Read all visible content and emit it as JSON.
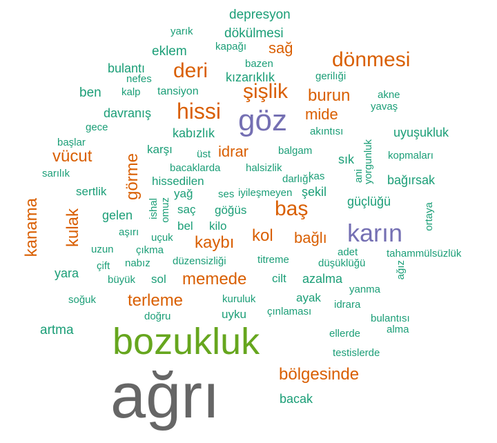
{
  "colors": {
    "teal": "#1b9e77",
    "orange": "#d95f02",
    "purple": "#7570b3",
    "green": "#66a61e",
    "gray": "#666666"
  },
  "words": [
    {
      "text": "ağrı",
      "color": "gray",
      "rank": 1
    },
    {
      "text": "bozukluk",
      "color": "green",
      "rank": 2
    },
    {
      "text": "göz",
      "color": "purple",
      "rank": 3
    },
    {
      "text": "karın",
      "color": "purple",
      "rank": 3
    },
    {
      "text": "hissi",
      "color": "orange",
      "rank": 4
    },
    {
      "text": "deri",
      "color": "orange",
      "rank": 4
    },
    {
      "text": "dönmesi",
      "color": "orange",
      "rank": 4
    },
    {
      "text": "şişlik",
      "color": "orange",
      "rank": 4
    },
    {
      "text": "baş",
      "color": "orange",
      "rank": 4
    },
    {
      "text": "memede",
      "color": "orange",
      "rank": 5
    },
    {
      "text": "terleme",
      "color": "orange",
      "rank": 5
    },
    {
      "text": "bölgesinde",
      "color": "orange",
      "rank": 5
    },
    {
      "text": "burun",
      "color": "orange",
      "rank": 5
    },
    {
      "text": "kol",
      "color": "orange",
      "rank": 5
    },
    {
      "text": "kaybı",
      "color": "orange",
      "rank": 5
    },
    {
      "text": "kulak",
      "color": "orange",
      "rank": 5
    },
    {
      "text": "kanama",
      "color": "orange",
      "rank": 5
    },
    {
      "text": "görme",
      "color": "orange",
      "rank": 5
    },
    {
      "text": "vücut",
      "color": "orange",
      "rank": 5
    },
    {
      "text": "idrar",
      "color": "orange",
      "rank": 6
    },
    {
      "text": "mide",
      "color": "orange",
      "rank": 6
    },
    {
      "text": "bağlı",
      "color": "orange",
      "rank": 6
    },
    {
      "text": "sağ",
      "color": "orange",
      "rank": 6
    },
    {
      "text": "depresyon",
      "color": "teal",
      "rank": 7
    },
    {
      "text": "dökülmesi",
      "color": "teal",
      "rank": 7
    },
    {
      "text": "yarık",
      "color": "teal",
      "rank": 8
    },
    {
      "text": "kapağı",
      "color": "teal",
      "rank": 8
    },
    {
      "text": "eklem",
      "color": "teal",
      "rank": 7
    },
    {
      "text": "bazen",
      "color": "teal",
      "rank": 8
    },
    {
      "text": "bulantı",
      "color": "teal",
      "rank": 7
    },
    {
      "text": "kızarıklık",
      "color": "teal",
      "rank": 7
    },
    {
      "text": "gerilıği",
      "color": "teal",
      "rank": 8
    },
    {
      "text": "nefes",
      "color": "teal",
      "rank": 8
    },
    {
      "text": "ben",
      "color": "teal",
      "rank": 7
    },
    {
      "text": "kalp",
      "color": "teal",
      "rank": 8
    },
    {
      "text": "tansiyon",
      "color": "teal",
      "rank": 8
    },
    {
      "text": "akne",
      "color": "teal",
      "rank": 8
    },
    {
      "text": "yavaş",
      "color": "teal",
      "rank": 8
    },
    {
      "text": "davranış",
      "color": "teal",
      "rank": 7
    },
    {
      "text": "gece",
      "color": "teal",
      "rank": 8
    },
    {
      "text": "kabızlık",
      "color": "teal",
      "rank": 7
    },
    {
      "text": "akıntısı",
      "color": "teal",
      "rank": 8
    },
    {
      "text": "uyuşukluk",
      "color": "teal",
      "rank": 7
    },
    {
      "text": "başlar",
      "color": "teal",
      "rank": 8
    },
    {
      "text": "karşı",
      "color": "teal",
      "rank": 7
    },
    {
      "text": "üst",
      "color": "teal",
      "rank": 8
    },
    {
      "text": "balgam",
      "color": "teal",
      "rank": 8
    },
    {
      "text": "yorgunluk",
      "color": "teal",
      "rank": 8
    },
    {
      "text": "kopmaları",
      "color": "teal",
      "rank": 8
    },
    {
      "text": "sarılık",
      "color": "teal",
      "rank": 8
    },
    {
      "text": "bacaklarda",
      "color": "teal",
      "rank": 8
    },
    {
      "text": "halsizlik",
      "color": "teal",
      "rank": 8
    },
    {
      "text": "sık",
      "color": "teal",
      "rank": 7
    },
    {
      "text": "ani",
      "color": "teal",
      "rank": 8
    },
    {
      "text": "hissedilen",
      "color": "teal",
      "rank": 7
    },
    {
      "text": "darlığı",
      "color": "teal",
      "rank": 8
    },
    {
      "text": "kas",
      "color": "teal",
      "rank": 8
    },
    {
      "text": "bağırsak",
      "color": "teal",
      "rank": 7
    },
    {
      "text": "sertlik",
      "color": "teal",
      "rank": 7
    },
    {
      "text": "yağ",
      "color": "teal",
      "rank": 7
    },
    {
      "text": "ses",
      "color": "teal",
      "rank": 8
    },
    {
      "text": "iyileşmeyen",
      "color": "teal",
      "rank": 8
    },
    {
      "text": "şekil",
      "color": "teal",
      "rank": 7
    },
    {
      "text": "güçlüğü",
      "color": "teal",
      "rank": 7
    },
    {
      "text": "ishal",
      "color": "teal",
      "rank": 8
    },
    {
      "text": "omuz",
      "color": "teal",
      "rank": 8
    },
    {
      "text": "saç",
      "color": "teal",
      "rank": 7
    },
    {
      "text": "göğüs",
      "color": "teal",
      "rank": 7
    },
    {
      "text": "gelen",
      "color": "teal",
      "rank": 7
    },
    {
      "text": "ortaya",
      "color": "teal",
      "rank": 8
    },
    {
      "text": "aşırı",
      "color": "teal",
      "rank": 8
    },
    {
      "text": "bel",
      "color": "teal",
      "rank": 7
    },
    {
      "text": "kilo",
      "color": "teal",
      "rank": 7
    },
    {
      "text": "uçuk",
      "color": "teal",
      "rank": 8
    },
    {
      "text": "uzun",
      "color": "teal",
      "rank": 8
    },
    {
      "text": "çıkma",
      "color": "teal",
      "rank": 8
    },
    {
      "text": "adet",
      "color": "teal",
      "rank": 8
    },
    {
      "text": "tahammülsüzlük",
      "color": "teal",
      "rank": 8
    },
    {
      "text": "çift",
      "color": "teal",
      "rank": 8
    },
    {
      "text": "nabız",
      "color": "teal",
      "rank": 8
    },
    {
      "text": "düzensizliği",
      "color": "teal",
      "rank": 8
    },
    {
      "text": "titreme",
      "color": "teal",
      "rank": 8
    },
    {
      "text": "düşüklüğü",
      "color": "teal",
      "rank": 8
    },
    {
      "text": "yara",
      "color": "teal",
      "rank": 7
    },
    {
      "text": "büyük",
      "color": "teal",
      "rank": 8
    },
    {
      "text": "sol",
      "color": "teal",
      "rank": 7
    },
    {
      "text": "cilt",
      "color": "teal",
      "rank": 7
    },
    {
      "text": "azalma",
      "color": "teal",
      "rank": 7
    },
    {
      "text": "ağız",
      "color": "teal",
      "rank": 8
    },
    {
      "text": "yanma",
      "color": "teal",
      "rank": 8
    },
    {
      "text": "soğuk",
      "color": "teal",
      "rank": 8
    },
    {
      "text": "kuruluk",
      "color": "teal",
      "rank": 8
    },
    {
      "text": "ayak",
      "color": "teal",
      "rank": 7
    },
    {
      "text": "idrara",
      "color": "teal",
      "rank": 8
    },
    {
      "text": "doğru",
      "color": "teal",
      "rank": 8
    },
    {
      "text": "uyku",
      "color": "teal",
      "rank": 7
    },
    {
      "text": "çınlaması",
      "color": "teal",
      "rank": 8
    },
    {
      "text": "bulantısı",
      "color": "teal",
      "rank": 8
    },
    {
      "text": "artma",
      "color": "teal",
      "rank": 7
    },
    {
      "text": "alma",
      "color": "teal",
      "rank": 8
    },
    {
      "text": "ellerde",
      "color": "teal",
      "rank": 8
    },
    {
      "text": "testislerde",
      "color": "teal",
      "rank": 8
    },
    {
      "text": "bacak",
      "color": "teal",
      "rank": 7
    }
  ]
}
